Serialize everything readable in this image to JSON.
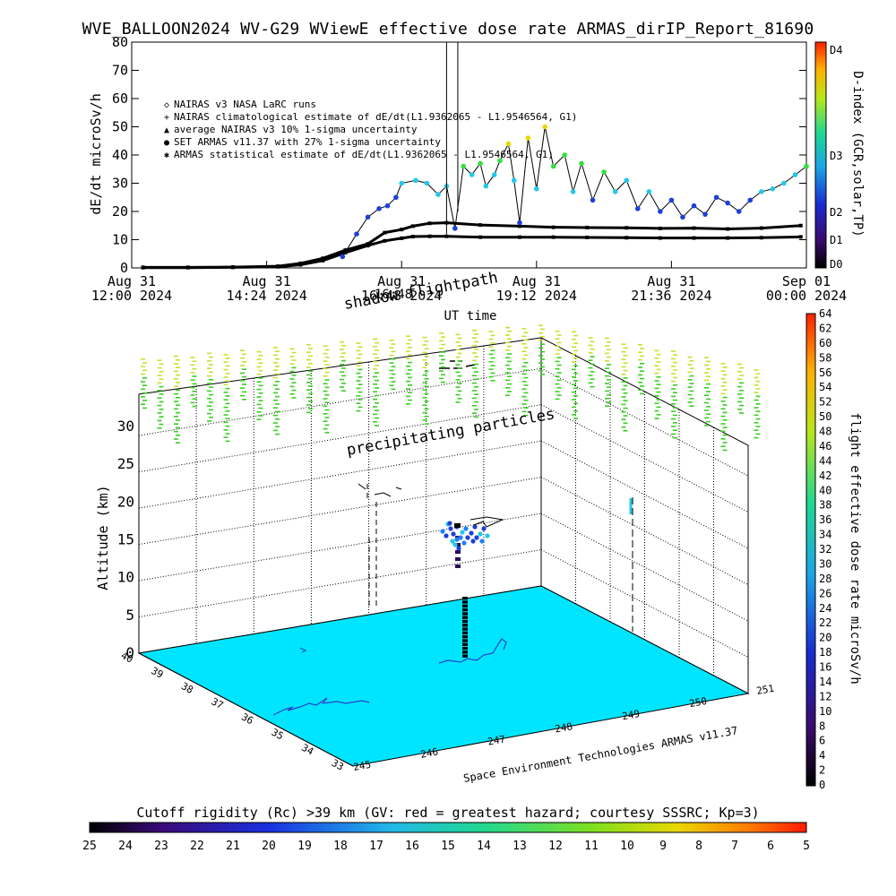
{
  "title": "WVE_BALLOON2024 WV-G29 WViewE effective dose rate ARMAS_dirIP_Report_81690",
  "chart_data": [
    {
      "type": "line",
      "ylabel": "dE/dt microSv/h",
      "xlabel": "UT time",
      "ylim": [
        0,
        80
      ],
      "yticks": [
        0,
        10,
        20,
        30,
        40,
        50,
        60,
        70,
        80
      ],
      "x_range_hours": [
        12.0,
        24.0
      ],
      "x_ticks": [
        {
          "h": 12.0,
          "l1": "Aug 31",
          "l2": "12:00 2024"
        },
        {
          "h": 14.4,
          "l1": "Aug 31",
          "l2": "14:24 2024"
        },
        {
          "h": 16.8,
          "l1": "Aug 31",
          "l2": "16:48 2024"
        },
        {
          "h": 19.2,
          "l1": "Aug 31",
          "l2": "19:12 2024"
        },
        {
          "h": 21.6,
          "l1": "Aug 31",
          "l2": "21:36 2024"
        },
        {
          "h": 24.0,
          "l1": "Sep 01",
          "l2": "00:00 2024"
        }
      ],
      "right_axis": {
        "label": "D-index (GCR,solar,TP)",
        "ticks": [
          "D0",
          "D1",
          "D2",
          "D3",
          "D4"
        ]
      },
      "legend": {
        "placement": "top-left",
        "entries": [
          {
            "symbol": "◇",
            "label": "NAIRAS v3 NASA LaRC runs"
          },
          {
            "symbol": "+",
            "label": "NAIRAS climatological estimate of dE/dt(L1.9362065 - L1.9546564, G1)"
          },
          {
            "symbol": "▲",
            "label": "average NAIRAS v3 10% 1-sigma uncertainty"
          },
          {
            "symbol": "●",
            "label": "SET ARMAS v11.37 with 27% 1-sigma uncertainty"
          },
          {
            "symbol": "✱",
            "label": "ARMAS statistical estimate of dE/dt(L1.9362065 - L1.9546564, G1)"
          }
        ]
      },
      "series": [
        {
          "name": "NAIRAS climatological estimate of dE/dt(L1.9362065 - L1.9546564, G1)",
          "color": "#000000",
          "x": [
            12.2,
            13.0,
            13.8,
            14.6,
            15.0,
            15.4,
            15.8,
            16.2,
            16.5,
            16.8,
            17.0,
            17.3,
            17.6,
            18.2,
            18.9,
            19.5,
            20.1,
            20.8,
            21.4,
            22.0,
            22.6,
            23.2,
            23.9
          ],
          "y": [
            0.2,
            0.2,
            0.3,
            0.6,
            1.6,
            3.4,
            6.3,
            8.5,
            12.5,
            13.6,
            14.8,
            15.8,
            16.0,
            15.2,
            14.8,
            14.4,
            14.3,
            14.2,
            14.0,
            14.1,
            13.8,
            14.1,
            15.0
          ]
        },
        {
          "name": "ARMAS statistical estimate of dE/dt(L1.9362065 - L1.9546564, G1)",
          "color": "#000000",
          "x": [
            12.2,
            13.0,
            13.8,
            14.6,
            15.0,
            15.4,
            15.8,
            16.2,
            16.5,
            16.8,
            17.0,
            17.3,
            17.6,
            18.2,
            18.9,
            19.5,
            20.1,
            20.8,
            21.4,
            22.0,
            22.6,
            23.2,
            23.9
          ],
          "y": [
            0.1,
            0.1,
            0.2,
            0.4,
            1.1,
            2.6,
            5.4,
            7.9,
            9.6,
            10.5,
            11.1,
            11.2,
            11.2,
            10.9,
            10.9,
            10.9,
            10.8,
            10.7,
            10.6,
            10.6,
            10.6,
            10.7,
            11.0
          ]
        },
        {
          "name": "SET ARMAS v11.37 with 27% 1-sigma uncertainty",
          "color": "#1f3fd8",
          "x": [
            15.75,
            16.0,
            16.2,
            16.4,
            16.55,
            16.7,
            16.8,
            17.05,
            17.25,
            17.45,
            17.6,
            17.75,
            17.9,
            18.05,
            18.2,
            18.3,
            18.45,
            18.55,
            18.7,
            18.8,
            18.9,
            19.05,
            19.2,
            19.35,
            19.5,
            19.7,
            19.85,
            20.0,
            20.2,
            20.4,
            20.6,
            20.8,
            21.0,
            21.2,
            21.4,
            21.6,
            21.8,
            22.0,
            22.2,
            22.4,
            22.6,
            22.8,
            23.0,
            23.2,
            23.4,
            23.6,
            23.8,
            24.0
          ],
          "y": [
            4,
            12,
            18,
            21,
            22,
            25,
            30,
            31,
            30,
            26,
            29,
            14,
            36,
            33,
            37,
            29,
            33,
            38,
            44,
            31,
            16,
            46,
            28,
            50,
            36,
            40,
            27,
            37,
            24,
            34,
            27,
            31,
            21,
            27,
            20,
            24,
            18,
            22,
            19,
            25,
            23,
            20,
            24,
            27,
            28,
            30,
            33,
            36
          ]
        }
      ]
    },
    {
      "type": "scatter",
      "title": "",
      "zlabel": "Altitude (km)",
      "zticks": [
        0,
        5,
        10,
        15,
        20,
        25,
        30
      ],
      "lat_ticks": [
        "33",
        "34",
        "35",
        "36",
        "37",
        "38",
        "39",
        "40"
      ],
      "lon_ticks": [
        "245",
        "246",
        "247",
        "248",
        "249",
        "250",
        "251"
      ],
      "annotations": [
        "shadow flightpath",
        "precipitating particles",
        "16:48",
        "Space Environment Technologies ARMAS v11.37"
      ],
      "right_colorbar": {
        "label": "flight effective dose rate microSv/h",
        "min": 0,
        "max": 64,
        "ticks": [
          "0",
          "2",
          "4",
          "6",
          "8",
          "10",
          "12",
          "14",
          "16",
          "18",
          "20",
          "22",
          "24",
          "26",
          "28",
          "30",
          "32",
          "34",
          "36",
          "38",
          "40",
          "42",
          "44",
          "46",
          "48",
          "50",
          "52",
          "54",
          "56",
          "58",
          "60",
          "62",
          "64"
        ]
      }
    },
    {
      "type": "heatmap",
      "title": "Cutoff rigidity (Rc) >39 km (GV: red = greatest hazard; courtesy SSSRC; Kp=3)",
      "ticks": [
        "25",
        "24",
        "23",
        "22",
        "21",
        "20",
        "19",
        "18",
        "17",
        "16",
        "15",
        "14",
        "13",
        "12",
        "11",
        "10",
        "9",
        "8",
        "7",
        "6",
        "5"
      ]
    }
  ]
}
